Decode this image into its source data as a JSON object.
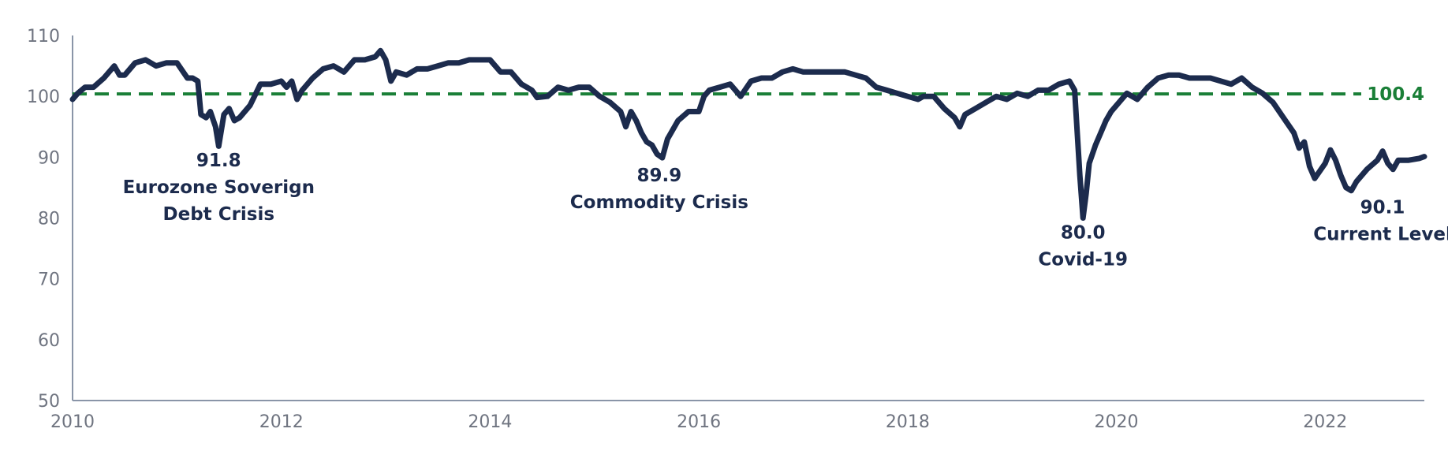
{
  "chart_data": {
    "type": "line",
    "title": "",
    "xlabel": "",
    "ylabel": "",
    "xlim": [
      2010,
      2022.95
    ],
    "ylim": [
      50,
      110
    ],
    "grid": false,
    "x_tick_labels": [
      "2010",
      "2012",
      "2014",
      "2016",
      "2018",
      "2020",
      "2022"
    ],
    "y_tick_labels": [
      "50",
      "60",
      "70",
      "80",
      "90",
      "100",
      "110"
    ],
    "colors": {
      "series": "#1c2b4d",
      "reference": "#1a7f37",
      "axis": "#8a95a8",
      "tick_text": "#6f7480"
    },
    "reference_line": {
      "value": 100.4,
      "label": "100.4",
      "style": "dashed"
    },
    "series": [
      {
        "name": "",
        "points": [
          [
            2010.0,
            99.5
          ],
          [
            2010.05,
            100.5
          ],
          [
            2010.12,
            101.5
          ],
          [
            2010.2,
            101.5
          ],
          [
            2010.3,
            103.0
          ],
          [
            2010.4,
            105.0
          ],
          [
            2010.45,
            103.5
          ],
          [
            2010.5,
            103.5
          ],
          [
            2010.6,
            105.5
          ],
          [
            2010.7,
            106.0
          ],
          [
            2010.8,
            105.0
          ],
          [
            2010.9,
            105.5
          ],
          [
            2011.0,
            105.5
          ],
          [
            2011.1,
            103.0
          ],
          [
            2011.15,
            103.0
          ],
          [
            2011.2,
            102.5
          ],
          [
            2011.23,
            97.0
          ],
          [
            2011.28,
            96.5
          ],
          [
            2011.32,
            97.5
          ],
          [
            2011.37,
            95.0
          ],
          [
            2011.4,
            91.8
          ],
          [
            2011.45,
            97.0
          ],
          [
            2011.5,
            98.0
          ],
          [
            2011.55,
            96.0
          ],
          [
            2011.6,
            96.5
          ],
          [
            2011.7,
            98.5
          ],
          [
            2011.8,
            102.0
          ],
          [
            2011.9,
            102.0
          ],
          [
            2012.0,
            102.5
          ],
          [
            2012.05,
            101.5
          ],
          [
            2012.1,
            102.5
          ],
          [
            2012.15,
            99.5
          ],
          [
            2012.2,
            101.0
          ],
          [
            2012.3,
            103.0
          ],
          [
            2012.4,
            104.5
          ],
          [
            2012.5,
            105.0
          ],
          [
            2012.6,
            104.0
          ],
          [
            2012.7,
            106.0
          ],
          [
            2012.8,
            106.0
          ],
          [
            2012.9,
            106.5
          ],
          [
            2012.95,
            107.5
          ],
          [
            2013.0,
            106.0
          ],
          [
            2013.05,
            102.5
          ],
          [
            2013.1,
            104.0
          ],
          [
            2013.2,
            103.5
          ],
          [
            2013.3,
            104.5
          ],
          [
            2013.4,
            104.5
          ],
          [
            2013.5,
            105.0
          ],
          [
            2013.6,
            105.5
          ],
          [
            2013.7,
            105.5
          ],
          [
            2013.8,
            106.0
          ],
          [
            2013.9,
            106.0
          ],
          [
            2014.0,
            106.0
          ],
          [
            2014.1,
            104.0
          ],
          [
            2014.2,
            104.0
          ],
          [
            2014.3,
            102.0
          ],
          [
            2014.4,
            101.0
          ],
          [
            2014.45,
            99.8
          ],
          [
            2014.55,
            100.0
          ],
          [
            2014.65,
            101.5
          ],
          [
            2014.75,
            101.0
          ],
          [
            2014.85,
            101.5
          ],
          [
            2014.95,
            101.5
          ],
          [
            2015.05,
            100.0
          ],
          [
            2015.15,
            99.0
          ],
          [
            2015.25,
            97.5
          ],
          [
            2015.3,
            95.0
          ],
          [
            2015.35,
            97.5
          ],
          [
            2015.4,
            96.0
          ],
          [
            2015.45,
            94.0
          ],
          [
            2015.5,
            92.5
          ],
          [
            2015.55,
            92.0
          ],
          [
            2015.6,
            90.5
          ],
          [
            2015.65,
            89.9
          ],
          [
            2015.7,
            93.0
          ],
          [
            2015.8,
            96.0
          ],
          [
            2015.9,
            97.5
          ],
          [
            2016.0,
            97.5
          ],
          [
            2016.05,
            100.0
          ],
          [
            2016.1,
            101.0
          ],
          [
            2016.2,
            101.5
          ],
          [
            2016.3,
            102.0
          ],
          [
            2016.4,
            100.0
          ],
          [
            2016.5,
            102.5
          ],
          [
            2016.6,
            103.0
          ],
          [
            2016.7,
            103.0
          ],
          [
            2016.8,
            104.0
          ],
          [
            2016.9,
            104.5
          ],
          [
            2017.0,
            104.0
          ],
          [
            2017.1,
            104.0
          ],
          [
            2017.2,
            104.0
          ],
          [
            2017.3,
            104.0
          ],
          [
            2017.4,
            104.0
          ],
          [
            2017.5,
            103.5
          ],
          [
            2017.6,
            103.0
          ],
          [
            2017.7,
            101.5
          ],
          [
            2017.8,
            101.0
          ],
          [
            2017.9,
            100.5
          ],
          [
            2018.0,
            100.0
          ],
          [
            2018.1,
            99.5
          ],
          [
            2018.15,
            100.0
          ],
          [
            2018.25,
            100.0
          ],
          [
            2018.35,
            98.0
          ],
          [
            2018.45,
            96.5
          ],
          [
            2018.5,
            95.0
          ],
          [
            2018.55,
            97.0
          ],
          [
            2018.65,
            98.0
          ],
          [
            2018.75,
            99.0
          ],
          [
            2018.85,
            100.0
          ],
          [
            2018.95,
            99.5
          ],
          [
            2019.05,
            100.5
          ],
          [
            2019.15,
            100.0
          ],
          [
            2019.25,
            101.0
          ],
          [
            2019.35,
            101.0
          ],
          [
            2019.45,
            102.0
          ],
          [
            2019.55,
            102.5
          ],
          [
            2019.6,
            101.0
          ],
          [
            2019.65,
            87.0
          ],
          [
            2019.68,
            80.0
          ],
          [
            2019.71,
            84.0
          ],
          [
            2019.74,
            89.0
          ],
          [
            2019.8,
            92.0
          ],
          [
            2019.85,
            94.0
          ],
          [
            2019.9,
            96.0
          ],
          [
            2019.95,
            97.5
          ],
          [
            2020.0,
            98.5
          ],
          [
            2020.1,
            100.5
          ],
          [
            2020.2,
            99.5
          ],
          [
            2020.3,
            101.5
          ],
          [
            2020.4,
            103.0
          ],
          [
            2020.5,
            103.5
          ],
          [
            2020.6,
            103.5
          ],
          [
            2020.7,
            103.0
          ],
          [
            2020.8,
            103.0
          ],
          [
            2020.9,
            103.0
          ],
          [
            2021.0,
            102.5
          ],
          [
            2021.1,
            102.0
          ],
          [
            2021.2,
            103.0
          ],
          [
            2021.3,
            101.5
          ],
          [
            2021.4,
            100.5
          ],
          [
            2021.5,
            99.0
          ],
          [
            2021.6,
            96.5
          ],
          [
            2021.7,
            94.0
          ],
          [
            2021.75,
            91.5
          ],
          [
            2021.8,
            92.5
          ],
          [
            2021.85,
            88.5
          ],
          [
            2021.9,
            86.5
          ],
          [
            2022.0,
            89.0
          ],
          [
            2022.05,
            91.2
          ],
          [
            2022.1,
            89.5
          ],
          [
            2022.15,
            87.0
          ],
          [
            2022.2,
            85.0
          ],
          [
            2022.25,
            84.5
          ],
          [
            2022.3,
            86.0
          ],
          [
            2022.4,
            88.0
          ],
          [
            2022.5,
            89.5
          ],
          [
            2022.55,
            91.0
          ],
          [
            2022.6,
            89.0
          ],
          [
            2022.65,
            88.0
          ],
          [
            2022.7,
            89.5
          ],
          [
            2022.8,
            89.5
          ],
          [
            2022.9,
            89.8
          ],
          [
            2022.95,
            90.1
          ]
        ]
      }
    ],
    "annotations": [
      {
        "x": 2011.4,
        "label_y": 88.5,
        "lines": [
          "91.8",
          "Eurozone Soverign",
          "Debt Crisis"
        ]
      },
      {
        "x": 2015.62,
        "label_y": 86.0,
        "lines": [
          "89.9",
          "Commodity Crisis"
        ]
      },
      {
        "x": 2019.68,
        "label_y": 76.6,
        "lines": [
          "80.0",
          "Covid-19"
        ]
      },
      {
        "x": 2022.55,
        "label_y": 80.8,
        "lines": [
          "90.1",
          "Current Level"
        ]
      }
    ]
  }
}
